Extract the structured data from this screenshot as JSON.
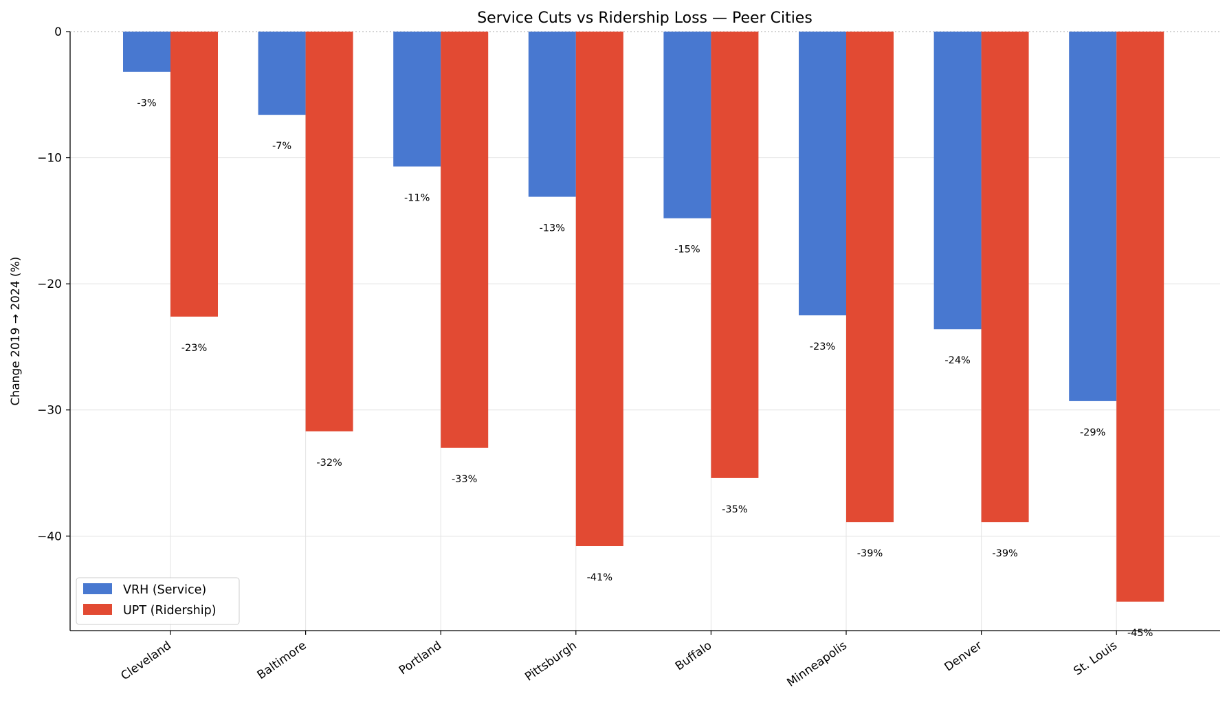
{
  "chart_data": {
    "type": "bar",
    "title": "Service Cuts vs Ridership Loss — Peer Cities",
    "xlabel": "",
    "ylabel": "Change 2019 → 2024 (%)",
    "ylim": [
      -47.5,
      0
    ],
    "yticks": [
      0,
      -10,
      -20,
      -30,
      -40
    ],
    "categories": [
      "Cleveland",
      "Baltimore",
      "Portland",
      "Pittsburgh",
      "Buffalo",
      "Minneapolis",
      "Denver",
      "St. Louis"
    ],
    "series": [
      {
        "name": "VRH (Service)",
        "color": "#4878d0",
        "values": [
          -3.2,
          -6.6,
          -10.7,
          -13.1,
          -14.8,
          -22.5,
          -23.6,
          -29.3
        ],
        "labels": [
          "-3%",
          "-7%",
          "-11%",
          "-13%",
          "-15%",
          "-23%",
          "-24%",
          "-29%"
        ]
      },
      {
        "name": "UPT (Ridership)",
        "color": "#e24a33",
        "values": [
          -22.6,
          -31.7,
          -33.0,
          -40.8,
          -35.4,
          -38.9,
          -38.9,
          -45.2
        ],
        "labels": [
          "-23%",
          "-32%",
          "-33%",
          "-41%",
          "-35%",
          "-39%",
          "-39%",
          "-45%"
        ]
      }
    ],
    "grid": true,
    "legend": "lower-left"
  }
}
